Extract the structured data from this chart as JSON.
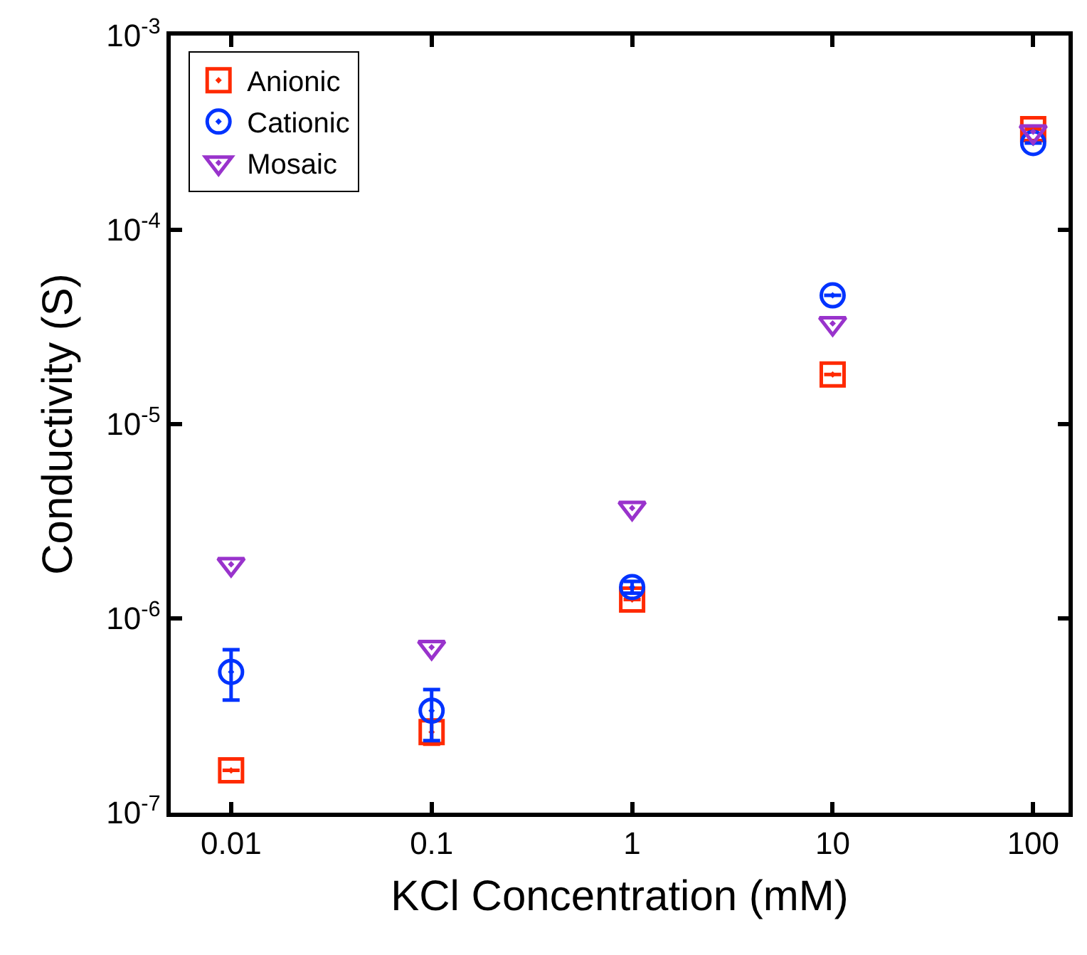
{
  "chart_data": {
    "type": "scatter",
    "xlabel": "KCl Concentration (mM)",
    "ylabel": "Conductivity (S)",
    "x": [
      0.01,
      0.1,
      1,
      10,
      100
    ],
    "series": [
      {
        "name": "Anionic",
        "color": "#ff2a00",
        "marker": "square",
        "values": [
          1.65e-07,
          2.6e-07,
          1.25e-06,
          1.8e-05,
          0.00033
        ],
        "errors": [
          null,
          [
            2.25e-07,
            3e-07
          ],
          null,
          null,
          null
        ]
      },
      {
        "name": "Cationic",
        "color": "#0033ff",
        "marker": "circle",
        "values": [
          5.3e-07,
          3.35e-07,
          1.45e-06,
          4.6e-05,
          0.00028
        ],
        "errors": [
          [
            3.8e-07,
            6.9e-07
          ],
          [
            2.35e-07,
            4.3e-07
          ],
          [
            1.35e-06,
            1.55e-06
          ],
          null,
          null
        ]
      },
      {
        "name": "Mosaic",
        "color": "#9933cc",
        "marker": "triangle",
        "values": [
          1.9e-06,
          7.1e-07,
          3.7e-06,
          3.3e-05,
          0.00032
        ]
      }
    ],
    "log": "xy",
    "xlim": [
      0.005,
      150
    ],
    "ylim": [
      1e-07,
      0.001
    ],
    "xticks": [
      0.01,
      0.1,
      1,
      10,
      100
    ],
    "yticks": [
      {
        "value": 1e-07,
        "label": "10$^{-7}$"
      },
      {
        "value": 1e-06,
        "label": "10$^{-6}$"
      },
      {
        "value": 1e-05,
        "label": "10$^{-5}$"
      },
      {
        "value": 0.0001,
        "label": "10$^{-4}$"
      },
      {
        "value": 0.001,
        "label": "10$^{-3}$"
      }
    ],
    "legend": "top left"
  }
}
